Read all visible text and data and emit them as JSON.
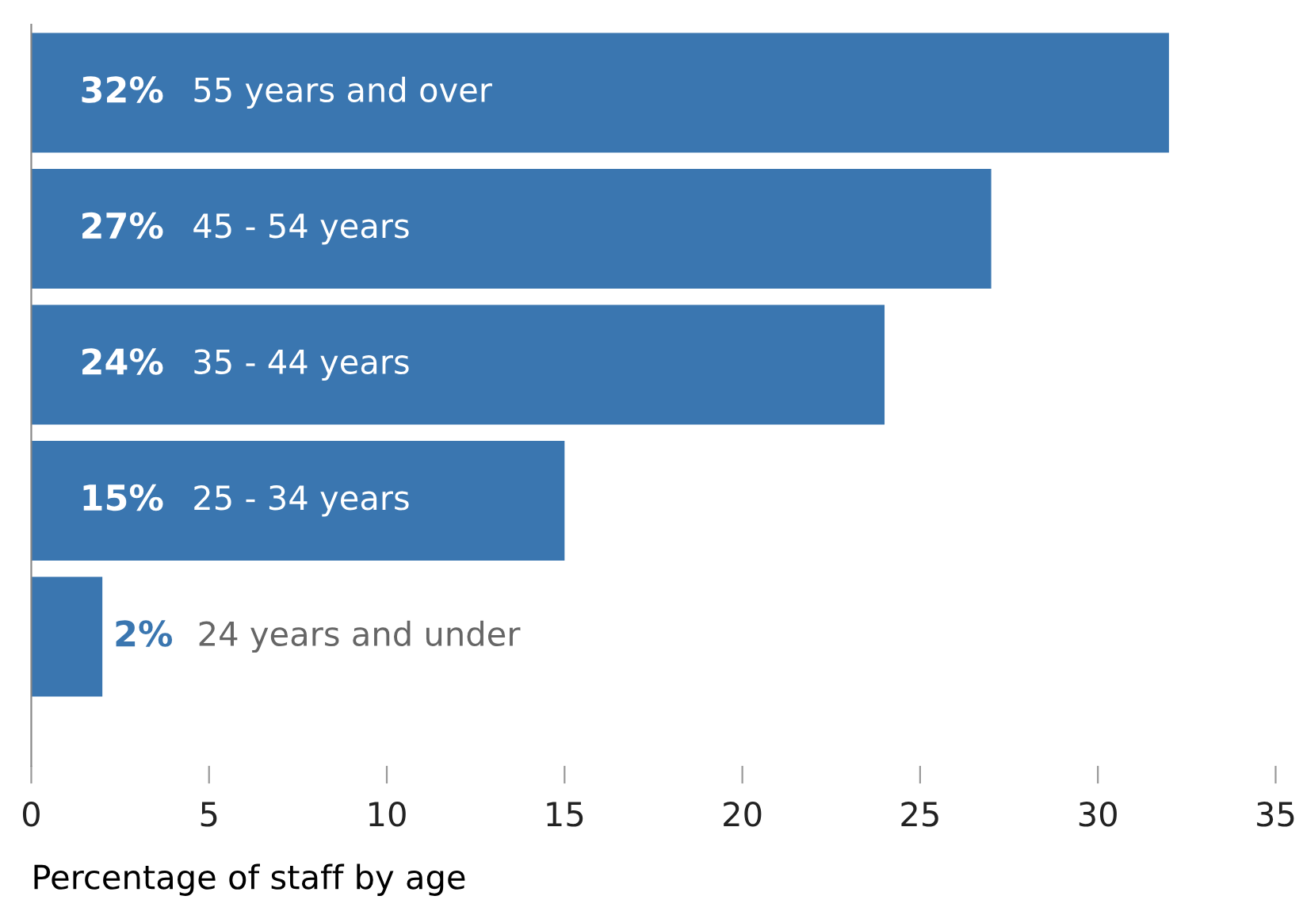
{
  "chart_data": {
    "type": "bar",
    "orientation": "horizontal",
    "xlabel": "Percentage of staff by age",
    "categories": [
      "55 years and over",
      "45 - 54 years",
      "35 - 44 years",
      "25 - 34 years",
      "24 years and under"
    ],
    "values": [
      32,
      27,
      24,
      15,
      2
    ],
    "value_labels": [
      "32%",
      "27%",
      "24%",
      "15%",
      "2%"
    ],
    "color": "#3a76b0",
    "xlim": [
      0,
      35
    ],
    "xticks": [
      0,
      5,
      10,
      15,
      20,
      25,
      30,
      35
    ],
    "grid": false
  }
}
